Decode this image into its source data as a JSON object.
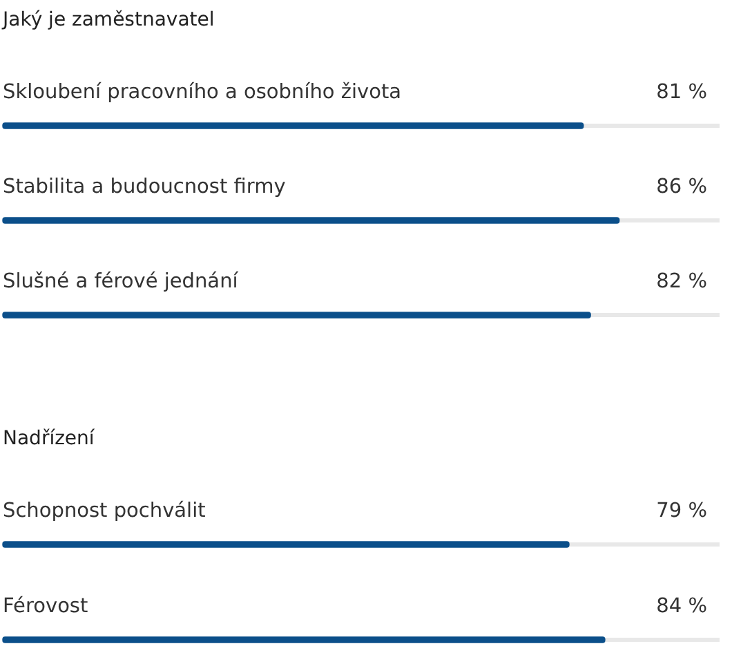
{
  "chart_data": [
    {
      "type": "bar",
      "title": "Jaký je zaměstnavatel",
      "orientation": "horizontal",
      "categories": [
        "Skloubení pracovního a osobního života",
        "Stabilita a budoucnost firmy",
        "Slušné a férové jednání"
      ],
      "values": [
        81,
        86,
        82
      ],
      "value_labels": [
        "81 %",
        "86 %",
        "82 %"
      ],
      "color": "#0b4f8a",
      "xlim": [
        0,
        100
      ],
      "tick_labels": "y"
    },
    {
      "type": "bar",
      "title": "Nadřízení",
      "orientation": "horizontal",
      "categories": [
        "Schopnost pochválit",
        "Férovost"
      ],
      "values": [
        79,
        84
      ],
      "value_labels": [
        "79 %",
        "84 %"
      ],
      "color": "#0b4f8a",
      "xlim": [
        0,
        100
      ],
      "tick_labels": "y"
    }
  ]
}
